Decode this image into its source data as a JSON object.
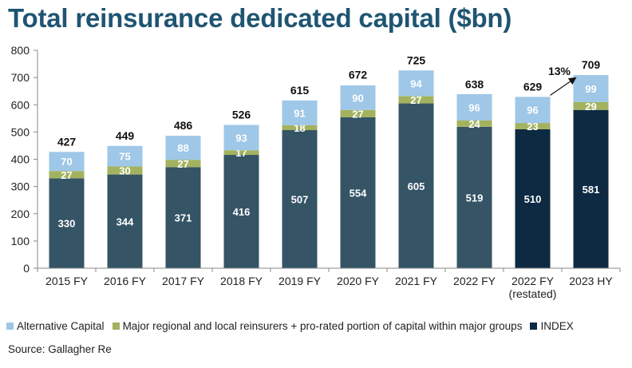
{
  "title": "Total reinsurance dedicated capital ($bn)",
  "source": "Source: Gallagher Re",
  "colors": {
    "alternative": "#9fc7e7",
    "major": "#a2b25f",
    "core": "#355466",
    "index": "#0d2a42",
    "growth_arrow": "#111111"
  },
  "chart_data": {
    "type": "bar",
    "stacked": true,
    "categories": [
      [
        "2015 FY"
      ],
      [
        "2016 FY"
      ],
      [
        "2017 FY"
      ],
      [
        "2018 FY"
      ],
      [
        "2019 FY"
      ],
      [
        "2020 FY"
      ],
      [
        "2021 FY"
      ],
      [
        "2022 FY"
      ],
      [
        "2022 FY",
        "(restated)"
      ],
      [
        "2023 HY"
      ]
    ],
    "ylim": [
      0,
      800
    ],
    "yticks": [
      0,
      100,
      200,
      300,
      400,
      500,
      600,
      700,
      800
    ],
    "grid": false,
    "legend_position": "bottom",
    "series": [
      {
        "name": "",
        "color_key_per_bar": [
          "core",
          "core",
          "core",
          "core",
          "core",
          "core",
          "core",
          "core",
          "index",
          "index"
        ],
        "values": [
          330,
          344,
          371,
          416,
          507,
          554,
          605,
          519,
          510,
          581
        ]
      },
      {
        "name": "Major regional and local reinsurers + pro-rated portion of capital within major groups",
        "color_key": "major",
        "values": [
          27,
          30,
          27,
          17,
          18,
          27,
          27,
          24,
          23,
          29
        ]
      },
      {
        "name": "Alternative Capital",
        "color_key": "alternative",
        "values": [
          70,
          75,
          88,
          93,
          91,
          90,
          94,
          96,
          96,
          99
        ]
      }
    ],
    "totals": [
      427,
      449,
      486,
      526,
      615,
      672,
      725,
      638,
      629,
      709
    ],
    "annotation": {
      "text": "13%",
      "from_index": 8,
      "to_index": 9
    }
  },
  "legend": [
    {
      "label": "Alternative Capital",
      "color_key": "alternative"
    },
    {
      "label": "Major regional and local reinsurers + pro-rated portion of capital within major groups",
      "color_key": "major"
    },
    {
      "label": "INDEX",
      "color_key": "index"
    }
  ]
}
